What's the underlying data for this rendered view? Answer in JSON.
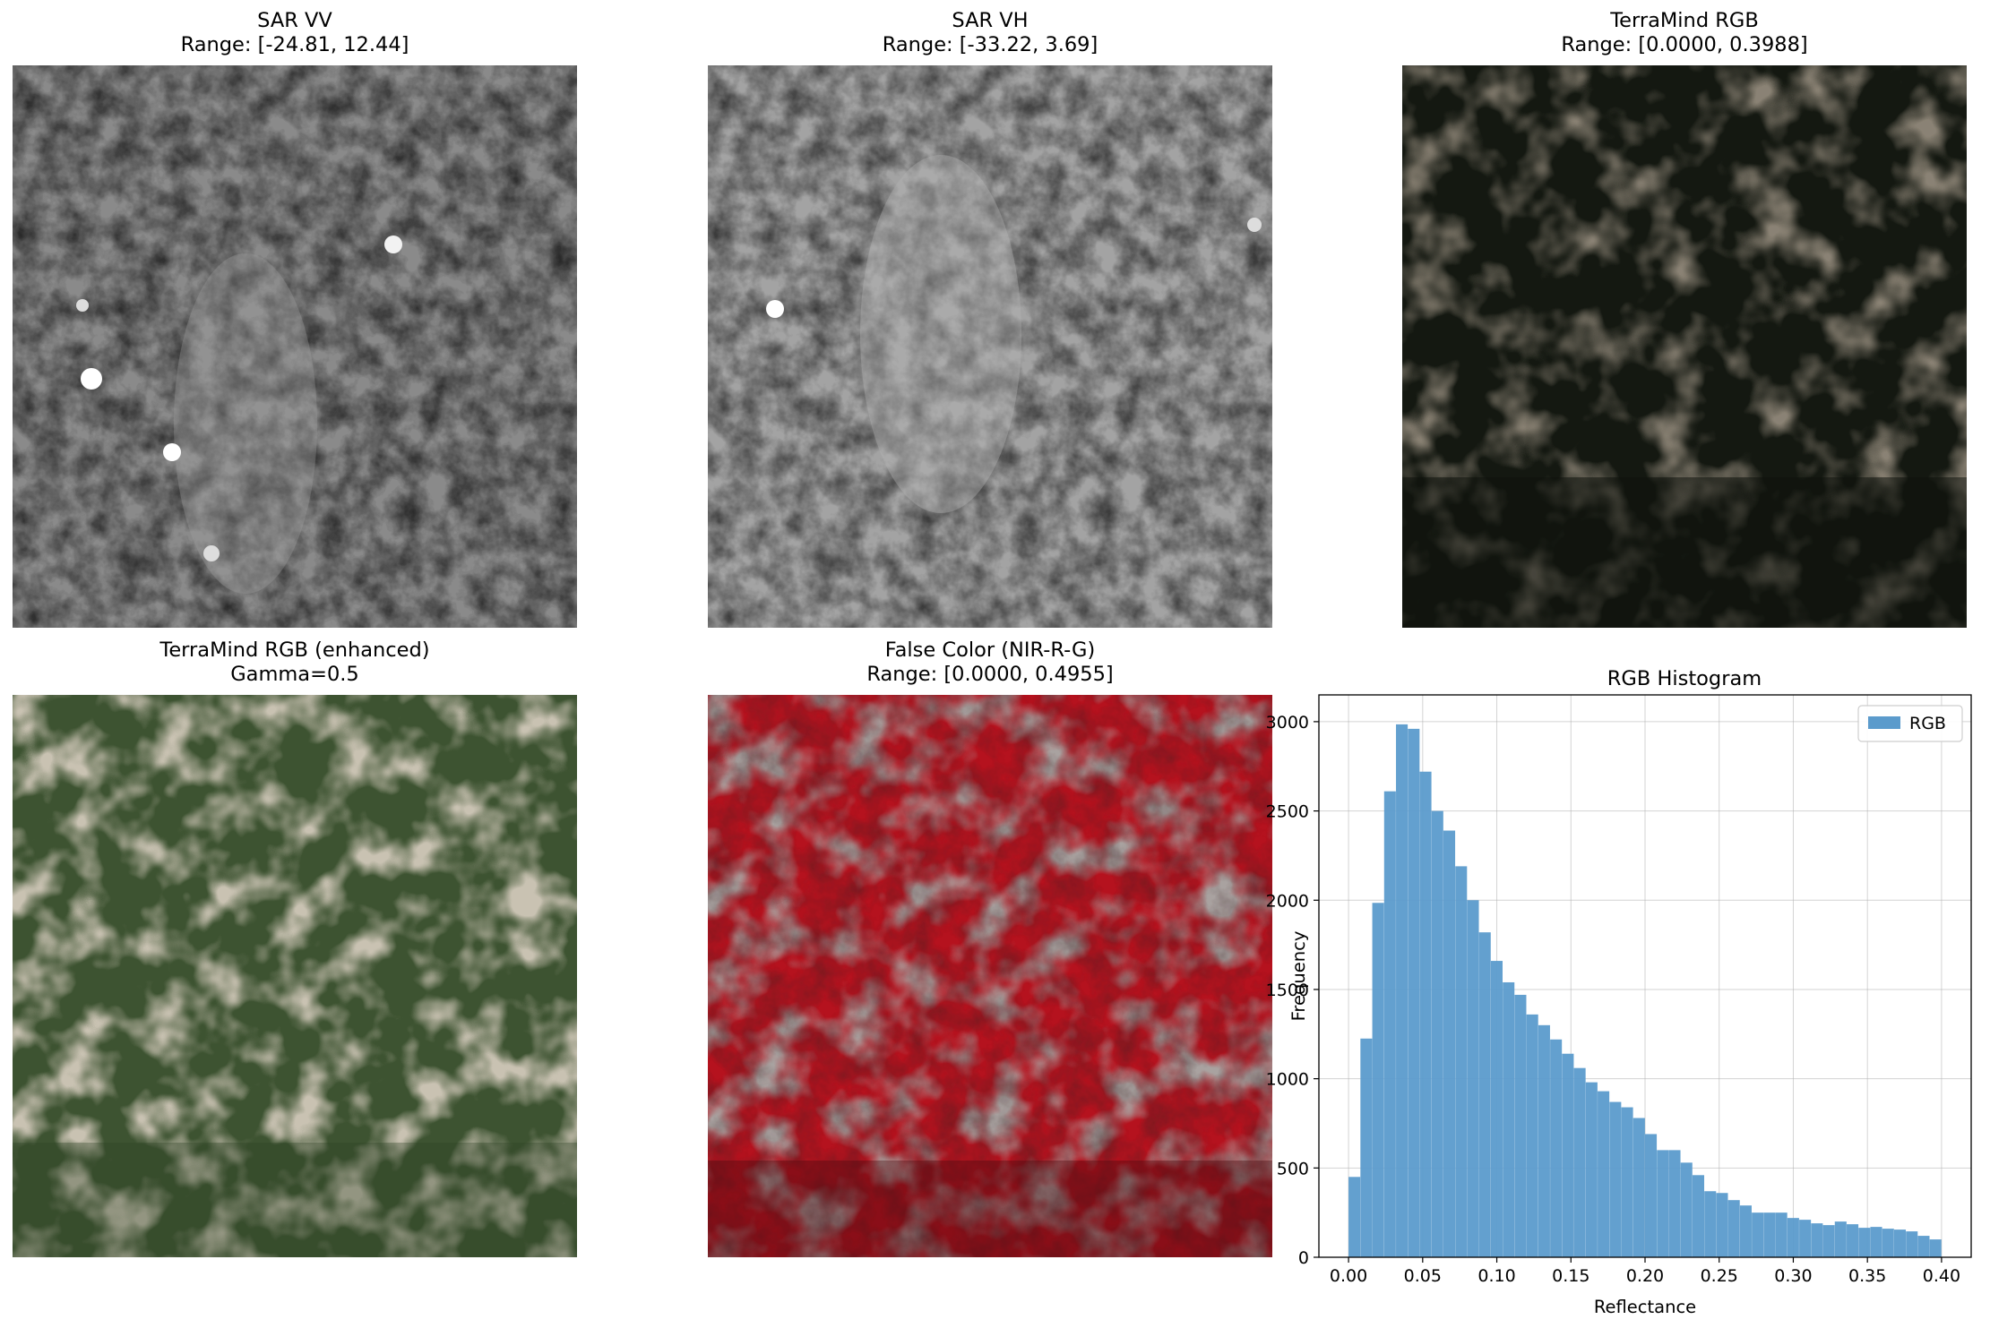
{
  "panels": [
    {
      "id": "sar-vv",
      "title": "SAR VV",
      "subtitle": "Range: [-24.81, 12.44]"
    },
    {
      "id": "sar-vh",
      "title": "SAR VH",
      "subtitle": "Range: [-33.22, 3.69]"
    },
    {
      "id": "terramind-rgb",
      "title": "TerraMind RGB",
      "subtitle": "Range: [0.0000, 0.3988]"
    },
    {
      "id": "terramind-rgb-enhanced",
      "title": "TerraMind RGB (enhanced)",
      "subtitle": "Gamma=0.5"
    },
    {
      "id": "false-color",
      "title": "False Color (NIR-R-G)",
      "subtitle": "Range: [0.0000, 0.4955]"
    }
  ],
  "chart_data": {
    "type": "bar",
    "title": "RGB Histogram",
    "xlabel": "Reflectance",
    "ylabel": "Frequency",
    "xlim": [
      -0.02,
      0.42
    ],
    "ylim": [
      0,
      3150
    ],
    "xticks": [
      "0.00",
      "0.05",
      "0.10",
      "0.15",
      "0.20",
      "0.25",
      "0.30",
      "0.35",
      "0.40"
    ],
    "yticks": [
      "0",
      "500",
      "1000",
      "1500",
      "2000",
      "2500",
      "3000"
    ],
    "grid": true,
    "legend_position": "top-right",
    "bin_width": 0.0079,
    "series": [
      {
        "name": "RGB",
        "color": "#5b9bcc",
        "bin_starts": [
          0.0,
          0.008,
          0.016,
          0.024,
          0.032,
          0.04,
          0.048,
          0.056,
          0.064,
          0.072,
          0.08,
          0.088,
          0.096,
          0.104,
          0.112,
          0.12,
          0.128,
          0.136,
          0.144,
          0.152,
          0.16,
          0.168,
          0.176,
          0.184,
          0.192,
          0.2,
          0.208,
          0.216,
          0.224,
          0.232,
          0.24,
          0.248,
          0.256,
          0.264,
          0.272,
          0.28,
          0.288,
          0.296,
          0.304,
          0.312,
          0.32,
          0.328,
          0.336,
          0.344,
          0.352,
          0.36,
          0.368,
          0.376,
          0.384,
          0.392
        ],
        "values": [
          450,
          1225,
          1985,
          2610,
          2985,
          2960,
          2720,
          2500,
          2390,
          2190,
          2000,
          1820,
          1660,
          1540,
          1470,
          1360,
          1300,
          1220,
          1140,
          1060,
          980,
          930,
          870,
          840,
          780,
          690,
          600,
          600,
          530,
          460,
          370,
          360,
          320,
          290,
          250,
          250,
          250,
          220,
          210,
          190,
          180,
          200,
          185,
          165,
          170,
          160,
          155,
          145,
          120,
          100
        ]
      }
    ]
  }
}
